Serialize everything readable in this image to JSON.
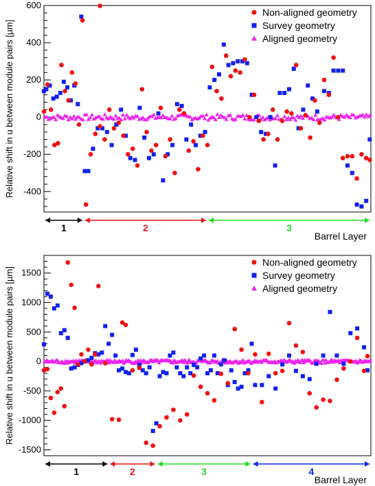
{
  "chart_data": [
    {
      "type": "scatter",
      "ylabel": "Relative shift in u between module pairs [µm]",
      "xlabel": "Barrel Layer",
      "ylim": [
        -510,
        600
      ],
      "yticks": [
        -400,
        -200,
        0,
        200,
        400,
        600
      ],
      "ytick_labels": [
        "-400",
        "-200",
        "0",
        "200",
        "400",
        "600"
      ],
      "xlim": [
        0,
        280
      ],
      "legend_position": "top-right",
      "layers": [
        {
          "label": "1",
          "start": 0,
          "end": 34,
          "color": "#000000"
        },
        {
          "label": "2",
          "start": 34,
          "end": 140,
          "color": "#e8141c"
        },
        {
          "label": "3",
          "start": 140,
          "end": 280,
          "color": "#22dd22"
        }
      ],
      "series": [
        {
          "name": "Non-aligned geometry",
          "marker": "circle",
          "color": "#ee1111",
          "x": [
            0,
            3,
            6,
            9,
            12,
            15,
            18,
            21,
            24,
            27,
            30,
            33,
            36,
            40,
            44,
            48,
            52,
            56,
            60,
            64,
            68,
            72,
            76,
            80,
            84,
            88,
            92,
            96,
            100,
            104,
            108,
            112,
            116,
            120,
            124,
            128,
            132,
            136,
            140,
            144,
            148,
            152,
            156,
            160,
            164,
            168,
            172,
            176,
            180,
            184,
            188,
            192,
            196,
            200,
            204,
            208,
            212,
            216,
            220,
            224,
            228,
            232,
            236,
            240,
            244,
            248,
            252,
            256,
            260,
            264,
            268,
            272,
            276,
            279
          ],
          "y": [
            30,
            175,
            40,
            -150,
            -140,
            280,
            140,
            90,
            240,
            180,
            -40,
            520,
            -470,
            -200,
            -90,
            -50,
            -120,
            40,
            -60,
            -30,
            -100,
            -200,
            -170,
            -260,
            150,
            -80,
            -180,
            -150,
            50,
            -210,
            -120,
            -300,
            40,
            20,
            -180,
            -130,
            -280,
            -100,
            -150,
            270,
            140,
            100,
            330,
            220,
            250,
            240,
            310,
            0,
            120,
            -20,
            -120,
            -90,
            40,
            -120,
            -20,
            30,
            20,
            280,
            -60,
            10,
            -110,
            90,
            -30,
            200,
            120,
            320,
            0,
            -220,
            -210,
            -210,
            -330,
            -200,
            -220,
            -230
          ],
          "extra": [
            {
              "x": 48,
              "y": 598
            }
          ]
        },
        {
          "name": "Survey geometry",
          "marker": "square",
          "color": "#1122ee",
          "x": [
            0,
            2,
            5,
            8,
            11,
            14,
            17,
            20,
            23,
            26,
            29,
            32,
            35,
            38,
            42,
            46,
            50,
            54,
            58,
            62,
            66,
            70,
            74,
            78,
            82,
            86,
            90,
            94,
            98,
            102,
            106,
            110,
            114,
            118,
            122,
            126,
            130,
            134,
            138,
            142,
            146,
            150,
            154,
            158,
            162,
            166,
            170,
            174,
            178,
            182,
            186,
            190,
            194,
            198,
            202,
            206,
            210,
            214,
            218,
            222,
            226,
            230,
            234,
            240,
            244,
            248,
            252,
            256,
            260,
            264,
            268,
            272,
            276,
            279
          ],
          "y": [
            140,
            150,
            170,
            100,
            110,
            130,
            190,
            160,
            90,
            170,
            70,
            540,
            -290,
            -290,
            -170,
            -60,
            -60,
            -80,
            -150,
            -40,
            40,
            -100,
            -220,
            -230,
            50,
            -110,
            -220,
            -200,
            20,
            -340,
            -200,
            -150,
            70,
            60,
            -120,
            -40,
            -150,
            -100,
            -80,
            160,
            200,
            230,
            390,
            280,
            290,
            300,
            300,
            290,
            120,
            0,
            -80,
            -90,
            0,
            -260,
            130,
            130,
            150,
            260,
            -60,
            40,
            170,
            100,
            30,
            140,
            130,
            250,
            250,
            250,
            -260,
            -300,
            -470,
            -480,
            -450,
            -120
          ]
        },
        {
          "name": "Aligned geometry",
          "marker": "triangle",
          "color": "#ee22ee",
          "x": [],
          "y": [],
          "band": 0,
          "band_noise": 15
        }
      ]
    },
    {
      "type": "scatter",
      "ylabel": "Relative shift in u between module pairs [µm]",
      "xlabel": "Barrel Layer",
      "ylim": [
        -1600,
        1800
      ],
      "yticks": [
        -1500,
        -1000,
        -500,
        0,
        500,
        1000,
        1500
      ],
      "ytick_labels": [
        "-1500",
        "-1000",
        "-500",
        "0",
        "500",
        "1000",
        "1500"
      ],
      "xlim": [
        0,
        480
      ],
      "legend_position": "top-right",
      "layers": [
        {
          "label": "1",
          "start": 0,
          "end": 95,
          "color": "#000000"
        },
        {
          "label": "2",
          "start": 95,
          "end": 165,
          "color": "#e8141c"
        },
        {
          "label": "3",
          "start": 165,
          "end": 305,
          "color": "#22dd22"
        },
        {
          "label": "4",
          "start": 305,
          "end": 480,
          "color": "#1122ee"
        }
      ],
      "series": [
        {
          "name": "Non-aligned geometry",
          "marker": "circle",
          "color": "#ee1111",
          "x": [
            0,
            5,
            10,
            15,
            20,
            25,
            30,
            35,
            40,
            45,
            50,
            55,
            60,
            65,
            70,
            75,
            80,
            90,
            100,
            110,
            115,
            120,
            130,
            140,
            150,
            160,
            170,
            180,
            190,
            200,
            210,
            220,
            230,
            240,
            250,
            260,
            270,
            280,
            290,
            300,
            310,
            320,
            330,
            340,
            350,
            360,
            370,
            380,
            390,
            400,
            410,
            420,
            430,
            440,
            450,
            460,
            470,
            475
          ],
          "y": [
            -150,
            -130,
            -620,
            -870,
            -520,
            -460,
            -760,
            1680,
            1300,
            910,
            -50,
            120,
            0,
            200,
            -50,
            120,
            1280,
            -30,
            -980,
            -990,
            660,
            620,
            -150,
            -110,
            -1380,
            -1430,
            -1100,
            -950,
            -820,
            -1000,
            -900,
            -240,
            -430,
            -540,
            -660,
            -210,
            -370,
            550,
            200,
            -200,
            120,
            -690,
            130,
            -200,
            -160,
            650,
            270,
            160,
            -540,
            -780,
            -650,
            -670,
            -310,
            -120,
            0,
            400,
            -160,
            90
          ]
        },
        {
          "name": "Survey geometry",
          "marker": "square",
          "color": "#1122ee",
          "x": [
            0,
            5,
            10,
            15,
            20,
            25,
            30,
            35,
            40,
            45,
            50,
            55,
            60,
            65,
            70,
            75,
            80,
            85,
            90,
            95,
            100,
            105,
            110,
            115,
            120,
            125,
            130,
            135,
            140,
            145,
            150,
            155,
            160,
            165,
            170,
            175,
            180,
            185,
            190,
            195,
            200,
            205,
            210,
            215,
            220,
            225,
            230,
            235,
            240,
            245,
            250,
            255,
            260,
            265,
            270,
            275,
            280,
            285,
            290,
            295,
            300,
            305,
            310,
            320,
            330,
            340,
            350,
            360,
            370,
            380,
            390,
            400,
            410,
            420,
            430,
            440,
            450,
            460,
            470,
            475
          ],
          "y": [
            290,
            1150,
            1100,
            900,
            950,
            480,
            530,
            400,
            -120,
            -100,
            -60,
            -30,
            0,
            20,
            60,
            140,
            120,
            150,
            600,
            300,
            450,
            100,
            -150,
            -120,
            -180,
            -200,
            110,
            200,
            -60,
            -150,
            -200,
            -100,
            -1180,
            -1050,
            -250,
            -180,
            -200,
            100,
            150,
            -100,
            -200,
            -250,
            -100,
            -200,
            -60,
            -100,
            50,
            100,
            -200,
            -150,
            100,
            -200,
            -50,
            20,
            -400,
            -150,
            -350,
            -460,
            -430,
            -200,
            -150,
            300,
            -400,
            -400,
            -250,
            -460,
            -50,
            100,
            -160,
            -250,
            -300,
            -40,
            100,
            840,
            100,
            -40,
            480,
            560,
            240,
            -150
          ]
        },
        {
          "name": "Aligned geometry",
          "marker": "triangle",
          "color": "#ee22ee",
          "x": [],
          "y": [],
          "band": 0,
          "band_noise": 30
        }
      ]
    }
  ]
}
